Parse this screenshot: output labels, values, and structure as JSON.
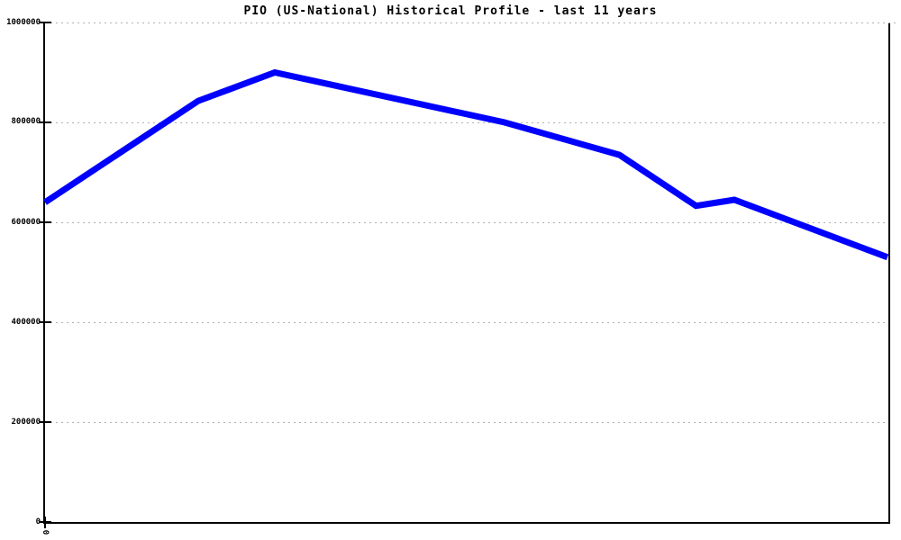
{
  "title": "PIO (US-National) Historical Profile - last 11 years",
  "chart_data": {
    "type": "line",
    "title": "PIO (US-National) Historical Profile - last 11 years",
    "x_axis": {
      "visible_tick_labels": [
        "0"
      ],
      "span_years": 11
    },
    "y_axis": {
      "min": 0,
      "max": 1000000,
      "tick_values": [
        0,
        200000,
        400000,
        600000,
        800000,
        1000000
      ],
      "tick_labels": [
        "0",
        "200000",
        "400000",
        "600000",
        "800000",
        "1000000"
      ]
    },
    "grid": {
      "orientation": "horizontal",
      "style": "dotted",
      "color": "#b0b0b0"
    },
    "legend": "none",
    "series": [
      {
        "name": "PIO (US-National)",
        "color": "#0000ff",
        "stroke_width": 7,
        "points": [
          {
            "x_frac": 0.0,
            "value": 640000
          },
          {
            "x_frac": 0.1818,
            "value": 843000
          },
          {
            "x_frac": 0.2727,
            "value": 900000
          },
          {
            "x_frac": 0.5455,
            "value": 800000
          },
          {
            "x_frac": 0.6818,
            "value": 735000
          },
          {
            "x_frac": 0.7727,
            "value": 633000
          },
          {
            "x_frac": 0.8182,
            "value": 645000
          },
          {
            "x_frac": 1.0,
            "value": 530000
          }
        ]
      }
    ]
  },
  "colors": {
    "axis": "#000000",
    "line": "#0000ff",
    "grid": "#b0b0b0",
    "text": "#000000",
    "background": "#ffffff"
  }
}
